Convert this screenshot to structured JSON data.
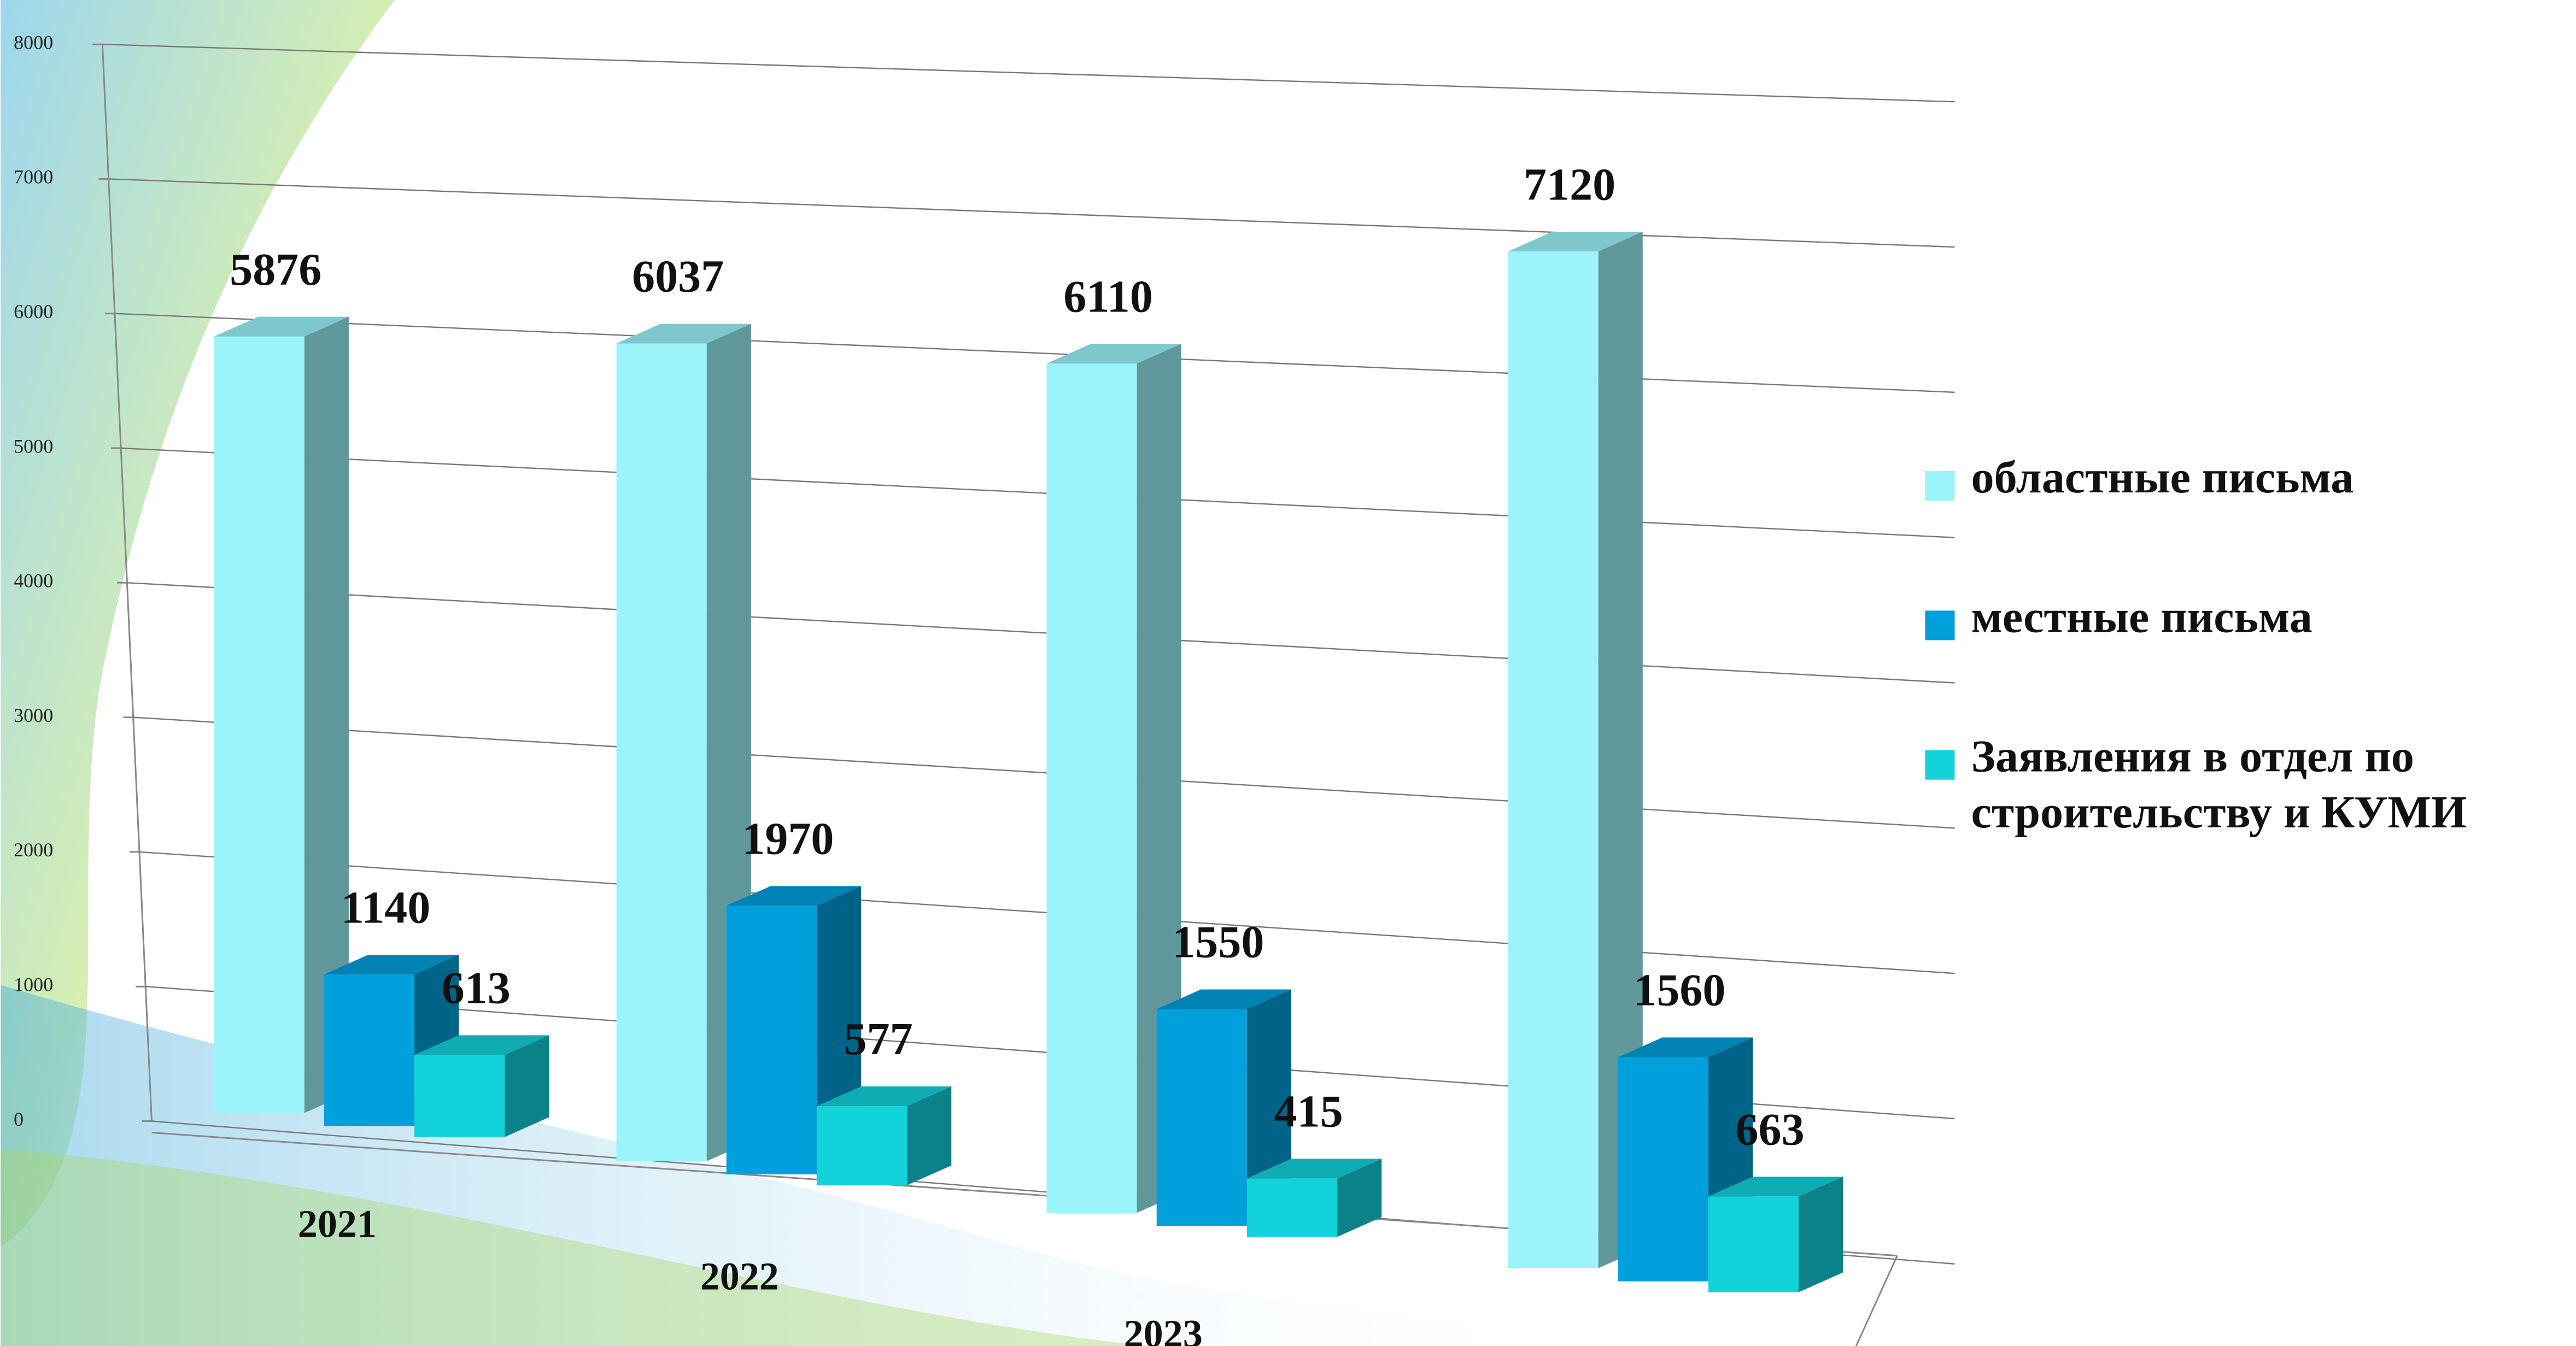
{
  "chart_data": {
    "type": "bar3d",
    "categories": [
      "2021",
      "2022",
      "2023",
      null
    ],
    "series": [
      {
        "name": "областные письма",
        "color": "#9af4fa",
        "values": [
          5876,
          6037,
          6110,
          7120
        ]
      },
      {
        "name": "местные письма",
        "color": "#00a0dc",
        "values": [
          1140,
          1970,
          1550,
          1560
        ]
      },
      {
        "name": "Заявления в отдел по строительству и КУМИ",
        "color": "#12d2da",
        "values": [
          613,
          577,
          415,
          663
        ]
      }
    ],
    "ylim": [
      0,
      8000
    ],
    "yticks": [
      0,
      1000,
      2000,
      3000,
      4000,
      5000,
      6000,
      7000,
      8000
    ],
    "grid": true,
    "legend": "right"
  }
}
